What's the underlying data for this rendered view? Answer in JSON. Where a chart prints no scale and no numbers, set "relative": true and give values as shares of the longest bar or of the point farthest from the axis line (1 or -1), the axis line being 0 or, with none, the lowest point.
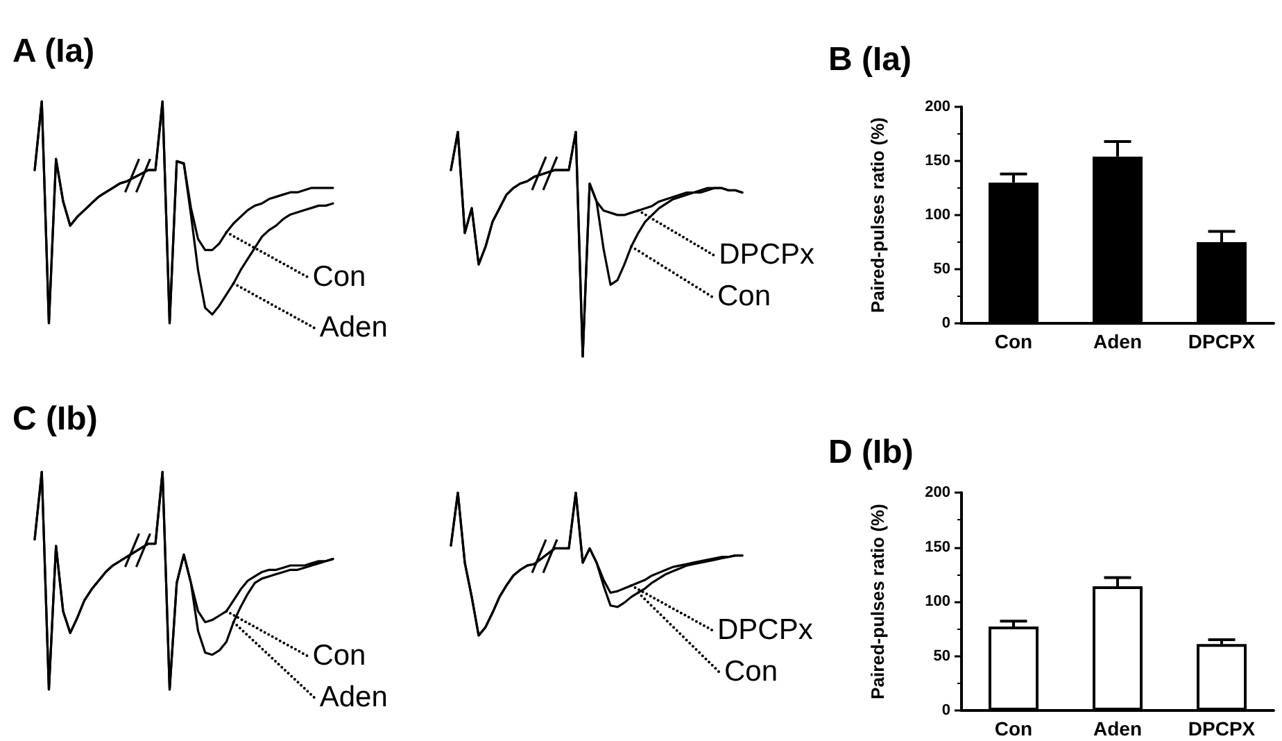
{
  "chart_data": [
    {
      "type": "line",
      "title": "A (Ia)",
      "relative": true,
      "marker": "none",
      "line_style": "solid",
      "categories": [
        null,
        null,
        null,
        null,
        null,
        null,
        null,
        null,
        null,
        null,
        null,
        null,
        null,
        null,
        null,
        null,
        null,
        null,
        null,
        null,
        null,
        null,
        null,
        null,
        null,
        null,
        null,
        null,
        null,
        null,
        null,
        null,
        null,
        null,
        null,
        null,
        null,
        null,
        null,
        null,
        null,
        null,
        null
      ],
      "series": [
        {
          "name": "Con",
          "color": "#000000",
          "values": [
            0.69,
            1,
            0,
            0.74,
            0.55,
            0.44,
            0.48,
            0.51,
            0.54,
            0.57,
            0.59,
            0.61,
            0.63,
            0.64,
            null,
            null,
            0.69,
            0.69,
            1,
            0,
            0.73,
            0.72,
            0.52,
            0.38,
            0.33,
            0.33,
            0.36,
            0.41,
            0.45,
            0.48,
            0.51,
            0.53,
            0.54,
            0.56,
            0.57,
            0.58,
            0.59,
            0.59,
            0.6,
            0.61,
            0.61,
            0.61,
            0.61
          ]
        },
        {
          "name": "Aden",
          "color": "#000000",
          "values": [
            0.69,
            1,
            0,
            0.74,
            0.55,
            0.44,
            0.48,
            0.51,
            0.54,
            0.57,
            0.59,
            0.61,
            0.63,
            0.64,
            null,
            null,
            0.69,
            0.69,
            1,
            0,
            0.73,
            0.72,
            0.49,
            0.24,
            0.07,
            0.04,
            0.08,
            0.13,
            0.18,
            0.24,
            0.29,
            0.34,
            0.39,
            0.42,
            0.44,
            0.47,
            0.49,
            0.5,
            0.51,
            0.52,
            0.53,
            0.53,
            0.54
          ]
        }
      ]
    },
    {
      "type": "line",
      "relative": true,
      "marker": "none",
      "line_style": "solid",
      "categories": [
        null,
        null,
        null,
        null,
        null,
        null,
        null,
        null,
        null,
        null,
        null,
        null,
        null,
        null,
        null,
        null,
        null,
        null,
        null,
        null,
        null,
        null,
        null,
        null,
        null,
        null,
        null,
        null,
        null,
        null,
        null,
        null,
        null,
        null,
        null,
        null,
        null,
        null,
        null,
        null,
        null,
        null,
        null
      ],
      "series": [
        {
          "name": "DPCPx",
          "color": "#000000",
          "values": [
            0.83,
            1,
            0.55,
            0.66,
            0.41,
            0.49,
            0.6,
            0.66,
            0.72,
            0.75,
            0.77,
            0.78,
            0.8,
            null,
            null,
            0.83,
            0.83,
            0.83,
            1,
            0,
            0.77,
            0.69,
            0.65,
            0.64,
            0.63,
            0.63,
            0.64,
            0.65,
            0.66,
            0.67,
            0.69,
            0.7,
            0.71,
            0.72,
            0.73,
            0.73,
            0.74,
            0.75,
            0.75,
            0.75,
            0.74,
            0.74,
            0.73
          ]
        },
        {
          "name": "Con",
          "color": "#000000",
          "values": [
            0.83,
            1,
            0.55,
            0.66,
            0.41,
            0.49,
            0.6,
            0.66,
            0.72,
            0.75,
            0.77,
            0.78,
            0.8,
            null,
            null,
            0.83,
            0.83,
            0.83,
            1,
            0,
            0.77,
            0.69,
            0.48,
            0.32,
            0.34,
            0.41,
            0.49,
            0.55,
            0.6,
            0.63,
            0.66,
            0.68,
            0.7,
            0.71,
            0.72,
            0.73,
            0.73,
            0.74,
            0.75,
            0.75,
            0.74,
            0.74,
            0.73
          ]
        }
      ]
    },
    {
      "type": "bar",
      "title": "B (Ia)",
      "ylabel": "Paired-pulses ratio (%)",
      "categories": [
        "Con",
        "Aden",
        "DPCPX"
      ],
      "values": [
        130,
        154,
        75
      ],
      "errors": [
        [
          130,
          138
        ],
        [
          154,
          168
        ],
        [
          75,
          85
        ]
      ],
      "color": "#000000",
      "ylim": [
        0,
        200
      ],
      "yticks": [
        0,
        50,
        100,
        150,
        200
      ]
    },
    {
      "type": "line",
      "title": "C (Ib)",
      "relative": true,
      "marker": "none",
      "line_style": "solid",
      "categories": [
        null,
        null,
        null,
        null,
        null,
        null,
        null,
        null,
        null,
        null,
        null,
        null,
        null,
        null,
        null,
        null,
        null,
        null,
        null,
        null,
        null,
        null,
        null,
        null,
        null,
        null,
        null,
        null,
        null,
        null,
        null,
        null,
        null,
        null,
        null,
        null,
        null,
        null,
        null,
        null,
        null,
        null,
        null
      ],
      "series": [
        {
          "name": "Con",
          "color": "#000000",
          "values": [
            0.69,
            1,
            0,
            0.66,
            0.36,
            0.26,
            0.33,
            0.41,
            0.46,
            0.5,
            0.54,
            0.57,
            0.59,
            0.61,
            null,
            null,
            0.67,
            0.67,
            1,
            0,
            0.49,
            0.62,
            0.49,
            0.36,
            0.31,
            0.32,
            0.34,
            0.36,
            0.41,
            0.46,
            0.5,
            0.52,
            0.54,
            0.55,
            0.55,
            0.56,
            0.57,
            0.57,
            0.57,
            0.58,
            0.59,
            0.59,
            0.6
          ]
        },
        {
          "name": "Aden",
          "color": "#000000",
          "values": [
            0.69,
            1,
            0,
            0.66,
            0.36,
            0.26,
            0.33,
            0.41,
            0.46,
            0.5,
            0.54,
            0.57,
            0.59,
            0.61,
            null,
            null,
            0.67,
            0.67,
            1,
            0,
            0.49,
            0.62,
            0.49,
            0.27,
            0.17,
            0.16,
            0.18,
            0.22,
            0.31,
            0.38,
            0.44,
            0.49,
            0.51,
            0.52,
            0.53,
            0.54,
            0.55,
            0.55,
            0.56,
            0.57,
            0.58,
            0.59,
            0.6
          ]
        }
      ]
    },
    {
      "type": "line",
      "relative": true,
      "marker": "none",
      "line_style": "solid",
      "categories": [
        null,
        null,
        null,
        null,
        null,
        null,
        null,
        null,
        null,
        null,
        null,
        null,
        null,
        null,
        null,
        null,
        null,
        null,
        null,
        null,
        null,
        null,
        null,
        null,
        null,
        null,
        null,
        null,
        null,
        null,
        null,
        null,
        null,
        null,
        null,
        null,
        null,
        null,
        null,
        null,
        null,
        null,
        null
      ],
      "series": [
        {
          "name": "DPCPx",
          "color": "#000000",
          "values": [
            0.63,
            1,
            0.51,
            0.27,
            0,
            0.06,
            0.16,
            0.27,
            0.35,
            0.42,
            0.46,
            0.49,
            0.5,
            null,
            null,
            0.61,
            0.61,
            0.61,
            1,
            0.51,
            0.61,
            0.51,
            0.39,
            0.3,
            0.31,
            0.33,
            0.35,
            0.37,
            0.39,
            0.42,
            0.44,
            0.46,
            0.48,
            0.49,
            0.5,
            0.51,
            0.52,
            0.53,
            0.54,
            0.55,
            0.55,
            0.56,
            0.56
          ]
        },
        {
          "name": "Con",
          "color": "#000000",
          "values": [
            0.63,
            1,
            0.51,
            0.27,
            0,
            0.06,
            0.16,
            0.27,
            0.35,
            0.42,
            0.46,
            0.49,
            0.5,
            null,
            null,
            0.61,
            0.61,
            0.61,
            1,
            0.51,
            0.61,
            0.51,
            0.35,
            0.21,
            0.2,
            0.23,
            0.27,
            0.3,
            0.33,
            0.37,
            0.4,
            0.43,
            0.45,
            0.47,
            0.49,
            0.5,
            0.51,
            0.52,
            0.53,
            0.54,
            0.55,
            0.56,
            0.56
          ]
        }
      ]
    },
    {
      "type": "bar",
      "title": "D (Ib)",
      "ylabel": "Paired-pulses ratio (%)",
      "categories": [
        "Con",
        "Aden",
        "DPCPX"
      ],
      "values": [
        77,
        114,
        61
      ],
      "errors": [
        [
          77,
          82
        ],
        [
          114,
          122
        ],
        [
          61,
          65
        ]
      ],
      "color": "#ffffff",
      "ylim": [
        0,
        200
      ],
      "yticks": [
        0,
        50,
        100,
        150,
        200
      ]
    }
  ]
}
